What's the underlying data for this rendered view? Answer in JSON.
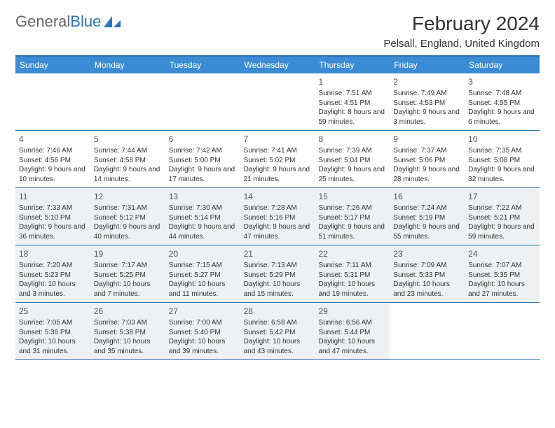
{
  "logo": {
    "text_a": "General",
    "text_b": "Blue"
  },
  "title": "February 2024",
  "location": "Pelsall, England, United Kingdom",
  "colors": {
    "header_bg": "#3b8cd4",
    "header_text": "#ffffff",
    "border": "#2a72b8",
    "shaded_bg": "#eef1f4",
    "body_text": "#333333",
    "logo_blue": "#2a72b8"
  },
  "day_names": [
    "Sunday",
    "Monday",
    "Tuesday",
    "Wednesday",
    "Thursday",
    "Friday",
    "Saturday"
  ],
  "weeks": [
    [
      {
        "empty": true
      },
      {
        "empty": true
      },
      {
        "empty": true
      },
      {
        "empty": true
      },
      {
        "num": "1",
        "sunrise": "Sunrise: 7:51 AM",
        "sunset": "Sunset: 4:51 PM",
        "daylight": "Daylight: 8 hours and 59 minutes."
      },
      {
        "num": "2",
        "sunrise": "Sunrise: 7:49 AM",
        "sunset": "Sunset: 4:53 PM",
        "daylight": "Daylight: 9 hours and 3 minutes."
      },
      {
        "num": "3",
        "sunrise": "Sunrise: 7:48 AM",
        "sunset": "Sunset: 4:55 PM",
        "daylight": "Daylight: 9 hours and 6 minutes."
      }
    ],
    [
      {
        "num": "4",
        "sunrise": "Sunrise: 7:46 AM",
        "sunset": "Sunset: 4:56 PM",
        "daylight": "Daylight: 9 hours and 10 minutes."
      },
      {
        "num": "5",
        "sunrise": "Sunrise: 7:44 AM",
        "sunset": "Sunset: 4:58 PM",
        "daylight": "Daylight: 9 hours and 14 minutes."
      },
      {
        "num": "6",
        "sunrise": "Sunrise: 7:42 AM",
        "sunset": "Sunset: 5:00 PM",
        "daylight": "Daylight: 9 hours and 17 minutes."
      },
      {
        "num": "7",
        "sunrise": "Sunrise: 7:41 AM",
        "sunset": "Sunset: 5:02 PM",
        "daylight": "Daylight: 9 hours and 21 minutes."
      },
      {
        "num": "8",
        "sunrise": "Sunrise: 7:39 AM",
        "sunset": "Sunset: 5:04 PM",
        "daylight": "Daylight: 9 hours and 25 minutes."
      },
      {
        "num": "9",
        "sunrise": "Sunrise: 7:37 AM",
        "sunset": "Sunset: 5:06 PM",
        "daylight": "Daylight: 9 hours and 28 minutes."
      },
      {
        "num": "10",
        "sunrise": "Sunrise: 7:35 AM",
        "sunset": "Sunset: 5:08 PM",
        "daylight": "Daylight: 9 hours and 32 minutes."
      }
    ],
    [
      {
        "num": "11",
        "shaded": true,
        "sunrise": "Sunrise: 7:33 AM",
        "sunset": "Sunset: 5:10 PM",
        "daylight": "Daylight: 9 hours and 36 minutes."
      },
      {
        "num": "12",
        "shaded": true,
        "sunrise": "Sunrise: 7:31 AM",
        "sunset": "Sunset: 5:12 PM",
        "daylight": "Daylight: 9 hours and 40 minutes."
      },
      {
        "num": "13",
        "shaded": true,
        "sunrise": "Sunrise: 7:30 AM",
        "sunset": "Sunset: 5:14 PM",
        "daylight": "Daylight: 9 hours and 44 minutes."
      },
      {
        "num": "14",
        "shaded": true,
        "sunrise": "Sunrise: 7:28 AM",
        "sunset": "Sunset: 5:16 PM",
        "daylight": "Daylight: 9 hours and 47 minutes."
      },
      {
        "num": "15",
        "shaded": true,
        "sunrise": "Sunrise: 7:26 AM",
        "sunset": "Sunset: 5:17 PM",
        "daylight": "Daylight: 9 hours and 51 minutes."
      },
      {
        "num": "16",
        "shaded": true,
        "sunrise": "Sunrise: 7:24 AM",
        "sunset": "Sunset: 5:19 PM",
        "daylight": "Daylight: 9 hours and 55 minutes."
      },
      {
        "num": "17",
        "shaded": true,
        "sunrise": "Sunrise: 7:22 AM",
        "sunset": "Sunset: 5:21 PM",
        "daylight": "Daylight: 9 hours and 59 minutes."
      }
    ],
    [
      {
        "num": "18",
        "shaded": true,
        "sunrise": "Sunrise: 7:20 AM",
        "sunset": "Sunset: 5:23 PM",
        "daylight": "Daylight: 10 hours and 3 minutes."
      },
      {
        "num": "19",
        "shaded": true,
        "sunrise": "Sunrise: 7:17 AM",
        "sunset": "Sunset: 5:25 PM",
        "daylight": "Daylight: 10 hours and 7 minutes."
      },
      {
        "num": "20",
        "shaded": true,
        "sunrise": "Sunrise: 7:15 AM",
        "sunset": "Sunset: 5:27 PM",
        "daylight": "Daylight: 10 hours and 11 minutes."
      },
      {
        "num": "21",
        "shaded": true,
        "sunrise": "Sunrise: 7:13 AM",
        "sunset": "Sunset: 5:29 PM",
        "daylight": "Daylight: 10 hours and 15 minutes."
      },
      {
        "num": "22",
        "shaded": true,
        "sunrise": "Sunrise: 7:11 AM",
        "sunset": "Sunset: 5:31 PM",
        "daylight": "Daylight: 10 hours and 19 minutes."
      },
      {
        "num": "23",
        "shaded": true,
        "sunrise": "Sunrise: 7:09 AM",
        "sunset": "Sunset: 5:33 PM",
        "daylight": "Daylight: 10 hours and 23 minutes."
      },
      {
        "num": "24",
        "shaded": true,
        "sunrise": "Sunrise: 7:07 AM",
        "sunset": "Sunset: 5:35 PM",
        "daylight": "Daylight: 10 hours and 27 minutes."
      }
    ],
    [
      {
        "num": "25",
        "shaded": true,
        "sunrise": "Sunrise: 7:05 AM",
        "sunset": "Sunset: 5:36 PM",
        "daylight": "Daylight: 10 hours and 31 minutes."
      },
      {
        "num": "26",
        "shaded": true,
        "sunrise": "Sunrise: 7:03 AM",
        "sunset": "Sunset: 5:38 PM",
        "daylight": "Daylight: 10 hours and 35 minutes."
      },
      {
        "num": "27",
        "shaded": true,
        "sunrise": "Sunrise: 7:00 AM",
        "sunset": "Sunset: 5:40 PM",
        "daylight": "Daylight: 10 hours and 39 minutes."
      },
      {
        "num": "28",
        "shaded": true,
        "sunrise": "Sunrise: 6:58 AM",
        "sunset": "Sunset: 5:42 PM",
        "daylight": "Daylight: 10 hours and 43 minutes."
      },
      {
        "num": "29",
        "shaded": true,
        "sunrise": "Sunrise: 6:56 AM",
        "sunset": "Sunset: 5:44 PM",
        "daylight": "Daylight: 10 hours and 47 minutes."
      },
      {
        "empty": true
      },
      {
        "empty": true
      }
    ]
  ]
}
